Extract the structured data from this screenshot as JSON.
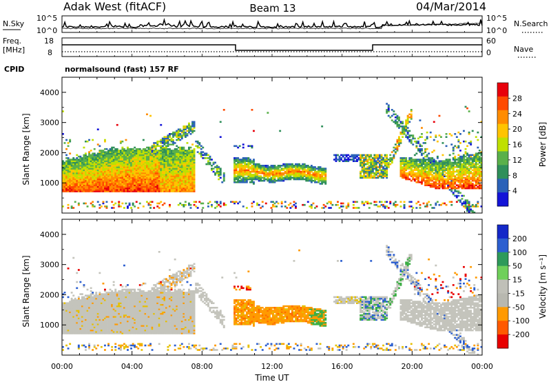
{
  "header": {
    "station": "Adak West (fitACF)",
    "beam": "Beam 13",
    "date": "04/Mar/2014"
  },
  "panels": {
    "nsky": {
      "left_label": "N.Sky",
      "right_label": "N.Search",
      "left_ticks": [
        "10^5",
        "10^0"
      ],
      "right_ticks": [
        "10^5",
        "10^0"
      ]
    },
    "freq": {
      "left_label_1": "Freq.",
      "left_label_2": "[MHz]",
      "right_label": "Nave",
      "left_ticks": [
        "18",
        "8"
      ],
      "right_ticks": [
        "60",
        "0"
      ]
    },
    "cpid": {
      "label": "CPID",
      "text": "normalsound (fast) 157 RF"
    }
  },
  "chart_data": [
    {
      "type": "heatmap",
      "name": "power",
      "xlabel": "Time UT",
      "ylabel": "Slant Range [km]",
      "xlim": [
        0,
        24
      ],
      "ylim": [
        0,
        4500
      ],
      "x_tick_labels": [
        "00:00",
        "04:00",
        "08:00",
        "12:00",
        "16:00",
        "20:00",
        "00:00"
      ],
      "y_tick_labels": [
        "1000",
        "2000",
        "3000",
        "4000"
      ],
      "y_ticks": [
        1000,
        2000,
        3000,
        4000
      ],
      "colorbar": {
        "label": "Power [dB]",
        "ticks": [
          "28",
          "24",
          "20",
          "16",
          "12",
          "8",
          "4"
        ],
        "colors": [
          "#e8000b",
          "#ff4a00",
          "#ff8c00",
          "#ffc400",
          "#bfe000",
          "#5ab04a",
          "#2f8f5a",
          "#2b62b8",
          "#1414d8"
        ]
      }
    },
    {
      "type": "heatmap",
      "name": "velocity",
      "xlabel": "Time UT",
      "ylabel": "Slant Range [km]",
      "xlim": [
        0,
        24
      ],
      "ylim": [
        0,
        4500
      ],
      "x_tick_labels": [
        "00:00",
        "04:00",
        "08:00",
        "12:00",
        "16:00",
        "20:00",
        "00:00"
      ],
      "y_tick_labels": [
        "1000",
        "2000",
        "3000",
        "4000"
      ],
      "y_ticks": [
        1000,
        2000,
        3000,
        4000
      ],
      "colorbar": {
        "label": "Velocity [m s⁻¹]",
        "ticks": [
          "200",
          "100",
          "50",
          "15",
          "-15",
          "-50",
          "-100",
          "-200"
        ],
        "colors": [
          "#1428c8",
          "#2c5fd0",
          "#2e9a5a",
          "#6fd05a",
          "#c0c0b8",
          "#b8b8b0",
          "#ff9a00",
          "#ff5a00",
          "#e80000"
        ]
      }
    }
  ],
  "x_axis_title": "Time UT"
}
